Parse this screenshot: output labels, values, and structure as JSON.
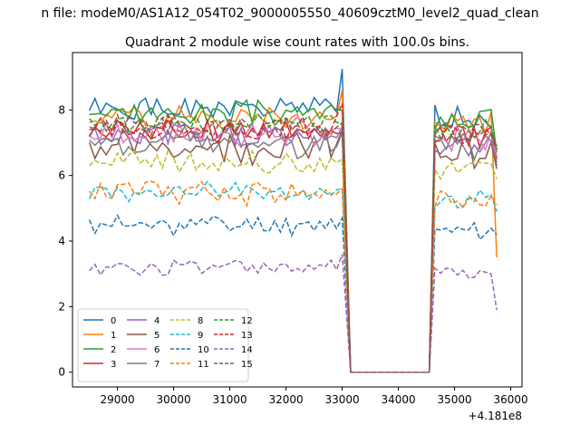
{
  "chart_data": {
    "type": "line",
    "suptitle": "n file: modeM0/AS1A12_054T02_9000005550_40609cztM0_level2_quad_clean",
    "title": "Quadrant 2 module wise count rates with 100.0s bins.",
    "xlabel": "",
    "ylabel": "",
    "offset_text": "+4.181e8",
    "xlim": [
      28200,
      36200
    ],
    "ylim": [
      -0.45,
      9.75
    ],
    "xticks": [
      29000,
      30000,
      31000,
      32000,
      33000,
      34000,
      35000,
      36000
    ],
    "yticks": [
      0,
      2,
      4,
      6,
      8
    ],
    "x_start": 28500,
    "x_step": 100,
    "gap_start": 33150,
    "gap_end": 34550,
    "seg2_start": 34650,
    "seg2_end": 35750,
    "legend": {
      "location": "lower-left",
      "columns": 4
    },
    "series": [
      {
        "name": "0",
        "color": "#1f77b4",
        "dash": "solid",
        "level": 8.0,
        "amp": 0.3,
        "seed": 1,
        "seg1_end": 9.25,
        "seg2_last": 6.8
      },
      {
        "name": "1",
        "color": "#ff7f0e",
        "dash": "solid",
        "level": 7.8,
        "amp": 0.3,
        "seed": 2,
        "seg1_end": 8.6,
        "seg2_last": 3.5
      },
      {
        "name": "2",
        "color": "#2ca02c",
        "dash": "solid",
        "level": 7.9,
        "amp": 0.3,
        "seed": 3,
        "seg1_end": 8.0,
        "seg2_last": 6.7
      },
      {
        "name": "3",
        "color": "#d62728",
        "dash": "solid",
        "level": 7.4,
        "amp": 0.3,
        "seed": 4,
        "seg1_end": 7.3,
        "seg2_last": 6.5
      },
      {
        "name": "4",
        "color": "#9467bd",
        "dash": "solid",
        "level": 7.2,
        "amp": 0.35,
        "seed": 5,
        "seg1_end": 7.5,
        "seg2_last": 6.3
      },
      {
        "name": "5",
        "color": "#8c564b",
        "dash": "solid",
        "level": 6.9,
        "amp": 0.4,
        "seed": 6,
        "seg1_end": 7.4,
        "seg2_last": 6.2
      },
      {
        "name": "6",
        "color": "#e377c2",
        "dash": "solid",
        "level": 7.3,
        "amp": 0.35,
        "seed": 7,
        "seg1_end": 7.4,
        "seg2_last": 6.6
      },
      {
        "name": "7",
        "color": "#7f7f7f",
        "dash": "solid",
        "level": 7.0,
        "amp": 0.4,
        "seed": 8,
        "seg1_end": 7.3,
        "seg2_last": 6.4
      },
      {
        "name": "8",
        "color": "#bcbd22",
        "dash": "dashed",
        "level": 6.4,
        "amp": 0.3,
        "seed": 9,
        "seg1_end": 6.5,
        "seg2_last": 5.9
      },
      {
        "name": "9",
        "color": "#17becf",
        "dash": "dashed",
        "level": 5.5,
        "amp": 0.25,
        "seed": 10,
        "seg1_end": 5.6,
        "seg2_last": 4.9
      },
      {
        "name": "10",
        "color": "#1f77b4",
        "dash": "dashed",
        "level": 4.5,
        "amp": 0.25,
        "seed": 11,
        "seg1_end": 4.7,
        "seg2_last": 4.2
      },
      {
        "name": "11",
        "color": "#ff7f0e",
        "dash": "dashed",
        "level": 5.5,
        "amp": 0.3,
        "seed": 12,
        "seg1_end": 5.6,
        "seg2_last": 5.1
      },
      {
        "name": "12",
        "color": "#2ca02c",
        "dash": "dashed",
        "level": 7.6,
        "amp": 0.25,
        "seed": 13,
        "seg1_end": 7.6,
        "seg2_last": 6.9
      },
      {
        "name": "13",
        "color": "#d62728",
        "dash": "dashed",
        "level": 7.4,
        "amp": 0.3,
        "seed": 14,
        "seg1_end": 8.2,
        "seg2_last": 6.8
      },
      {
        "name": "14",
        "color": "#9467bd",
        "dash": "dashed",
        "level": 3.2,
        "amp": 0.2,
        "seed": 15,
        "seg1_end": 3.6,
        "seg2_last": 1.9
      },
      {
        "name": "15",
        "color": "#8c564b",
        "dash": "dashed",
        "level": 7.5,
        "amp": 0.3,
        "seed": 16,
        "seg1_end": 7.6,
        "seg2_last": 6.9
      }
    ]
  }
}
